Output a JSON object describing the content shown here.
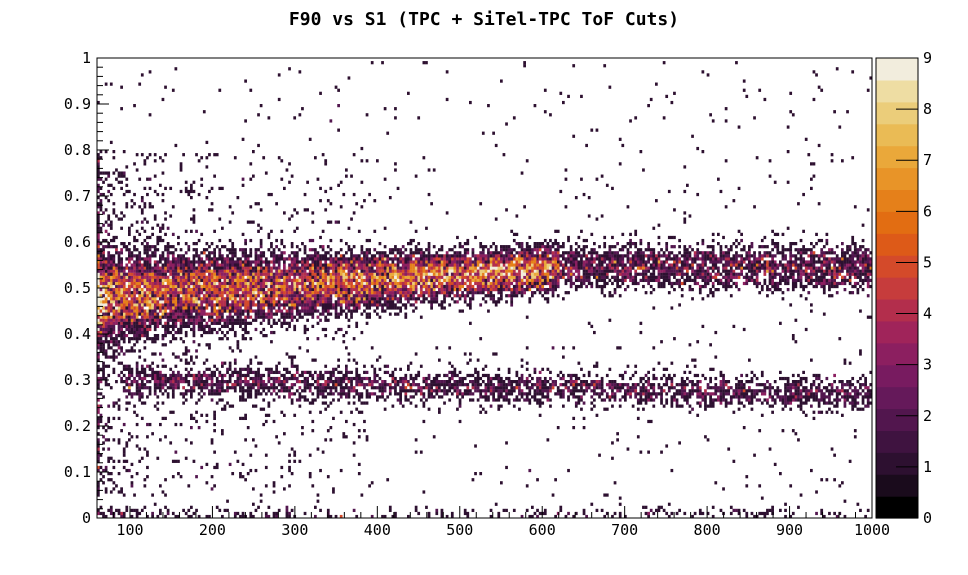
{
  "chart_data": {
    "type": "heatmap",
    "title": "F90 vs S1 (TPC + SiTel-TPC ToF Cuts)",
    "xlabel": "",
    "ylabel": "",
    "xlim": [
      60,
      1000
    ],
    "ylim": [
      0,
      1
    ],
    "x_ticks": [
      100,
      200,
      300,
      400,
      500,
      600,
      700,
      800,
      900,
      1000
    ],
    "x_tick_labels": [
      "100",
      "200",
      "300",
      "400",
      "500",
      "600",
      "700",
      "800",
      "900",
      "1000"
    ],
    "y_ticks": [
      0,
      0.1,
      0.2,
      0.3,
      0.4,
      0.5,
      0.6,
      0.7,
      0.8,
      0.9,
      1
    ],
    "y_tick_labels": [
      "0",
      "0.1",
      "0.2",
      "0.3",
      "0.4",
      "0.5",
      "0.6",
      "0.7",
      "0.8",
      "0.9",
      "1"
    ],
    "bins": {
      "x": 300,
      "y": 150
    },
    "zlim": [
      0,
      9
    ],
    "z_ticks": [
      0,
      1,
      2,
      3,
      4,
      5,
      6,
      7,
      8,
      9
    ],
    "z_tick_labels": [
      "0",
      "1",
      "2",
      "3",
      "4",
      "5",
      "6",
      "7",
      "8",
      "9"
    ],
    "grid": false,
    "populations": [
      {
        "kind": "band",
        "f90_center": [
          0.48,
          0.545
        ],
        "spread": 0.025,
        "peak_counts": 8
      },
      {
        "kind": "band",
        "f90_center": [
          0.3,
          0.27
        ],
        "spread": 0.018,
        "peak_counts": 2
      },
      {
        "kind": "band",
        "f90_center": [
          0.01,
          0.01
        ],
        "spread": 0.008,
        "peak_counts": 1
      },
      {
        "kind": "uniform",
        "peak_counts": 1
      }
    ],
    "palette": [
      "#000000",
      "#1a0b1c",
      "#2d1030",
      "#3f1340",
      "#52164e",
      "#65195a",
      "#781b60",
      "#8c1f60",
      "#a0245a",
      "#b32e4c",
      "#c63c3c",
      "#d44a2a",
      "#dd5a18",
      "#e26d12",
      "#e5801a",
      "#e89428",
      "#eaa83a",
      "#eabb55",
      "#ebcd7a",
      "#eedda3",
      "#f2eddd"
    ]
  }
}
